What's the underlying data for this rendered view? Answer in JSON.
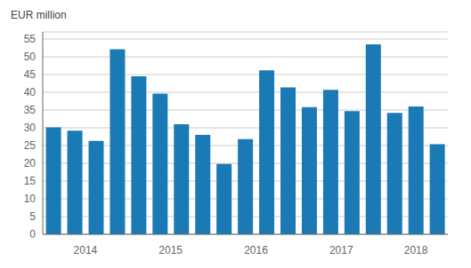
{
  "chart_data": {
    "type": "bar",
    "ylabel": "EUR million",
    "categories": [
      "2014",
      null,
      null,
      null,
      "2015",
      null,
      null,
      null,
      "2016",
      null,
      null,
      null,
      "2017",
      null,
      null,
      null,
      "2018",
      null,
      null
    ],
    "values": [
      30.1,
      29.2,
      26.3,
      52.1,
      44.5,
      39.6,
      31.0,
      28.0,
      19.8,
      26.8,
      46.2,
      41.4,
      35.8,
      40.7,
      34.7,
      53.5,
      34.2,
      36.0,
      25.4
    ],
    "color": "#1a7ab5",
    "ylim": [
      0,
      57
    ],
    "yticks": [
      0,
      5,
      10,
      15,
      20,
      25,
      30,
      35,
      40,
      45,
      50,
      55
    ],
    "grid": true
  }
}
